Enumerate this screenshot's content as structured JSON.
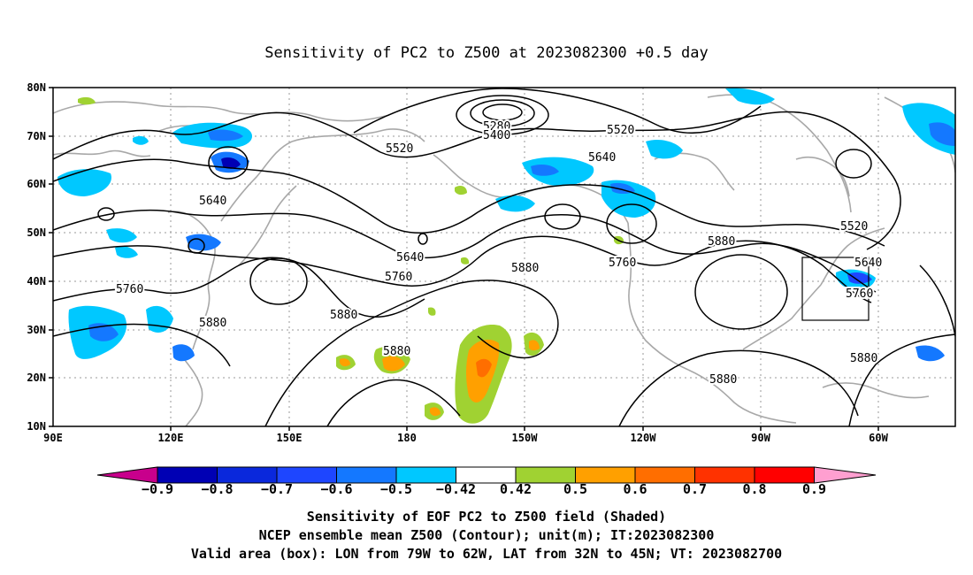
{
  "title": "Sensitivity of PC2 to Z500 at 2023082300 +0.5 day",
  "map": {
    "lat_ticks": [
      "80N",
      "70N",
      "60N",
      "50N",
      "40N",
      "30N",
      "20N",
      "10N"
    ],
    "lon_ticks": [
      "90E",
      "120E",
      "150E",
      "180",
      "150W",
      "120W",
      "90W",
      "60W"
    ],
    "contour_labels": [
      "5280",
      "5400",
      "5520",
      "5520",
      "5520",
      "5640",
      "5640",
      "5640",
      "5640",
      "5760",
      "5760",
      "5760",
      "5880",
      "5880",
      "5880",
      "5880",
      "5880",
      "5880",
      "5880",
      "5760"
    ],
    "valid_box": {
      "lon_min": -79,
      "lon_max": -62,
      "lat_min": 32,
      "lat_max": 45
    },
    "colors": {
      "coast": "#a8a8a8",
      "contour": "#000000",
      "grid": "#999999"
    }
  },
  "colorbar": {
    "labels": [
      "−0.9",
      "−0.8",
      "−0.7",
      "−0.6",
      "−0.5",
      "−0.42",
      "0.42",
      "0.5",
      "0.6",
      "0.7",
      "0.8",
      "0.9"
    ],
    "colors": [
      "#c8008c",
      "#0000b4",
      "#0a28dc",
      "#1e46ff",
      "#1478ff",
      "#00c8ff",
      "#ffffff",
      "#a0d232",
      "#ffa000",
      "#ff6e00",
      "#ff3200",
      "#ff0000",
      "#ff9fd0"
    ]
  },
  "caption": {
    "line1": "Sensitivity of EOF PC2 to Z500 field (Shaded)",
    "line2": "NCEP ensemble mean Z500 (Contour); unit(m); IT:2023082300",
    "line3": "Valid area (box): LON from 79W to 62W, LAT from 32N to 45N; VT: 2023082700"
  }
}
